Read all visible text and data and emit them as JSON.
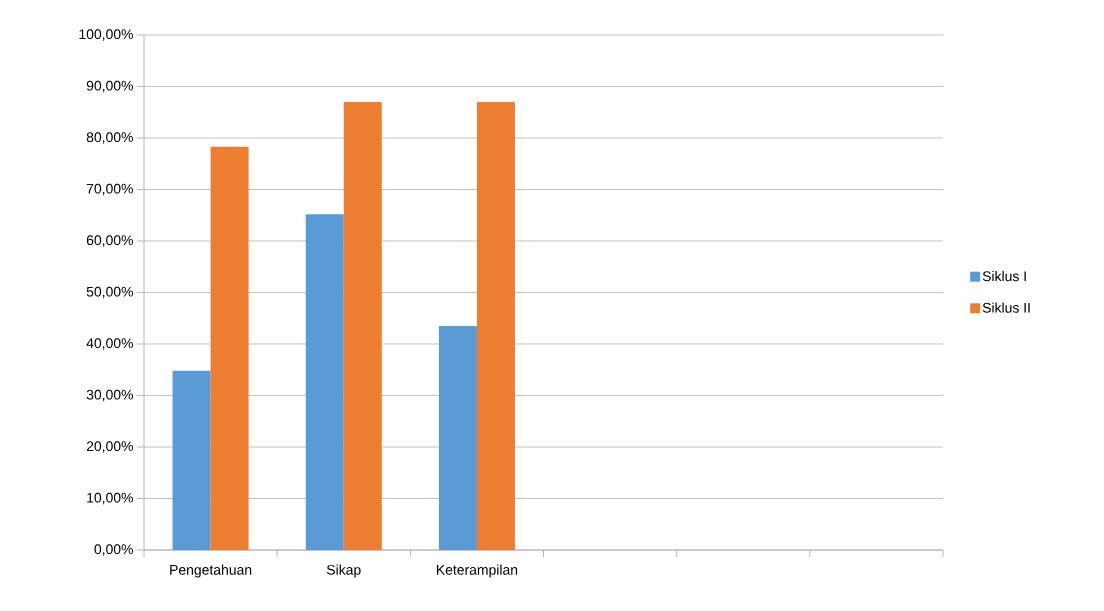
{
  "chart_data": {
    "type": "bar",
    "categories": [
      "Pengetahuan",
      "Sikap",
      "Keterampilan",
      null,
      null,
      null
    ],
    "series": [
      {
        "name": "Siklus I",
        "color": "#5b9bd5",
        "values": [
          34.8,
          65.2,
          43.5,
          null,
          null,
          null
        ]
      },
      {
        "name": "Siklus II",
        "color": "#ed7d31",
        "values": [
          78.3,
          87.0,
          87.0,
          null,
          null,
          null
        ]
      }
    ],
    "ylim": [
      0,
      100
    ],
    "yticks": [
      {
        "value": 0,
        "label": "0,00%"
      },
      {
        "value": 10,
        "label": "10,00%"
      },
      {
        "value": 20,
        "label": "20,00%"
      },
      {
        "value": 30,
        "label": "30,00%"
      },
      {
        "value": 40,
        "label": "40,00%"
      },
      {
        "value": 50,
        "label": "50,00%"
      },
      {
        "value": 60,
        "label": "60,00%"
      },
      {
        "value": 70,
        "label": "70,00%"
      },
      {
        "value": 80,
        "label": "80,00%"
      },
      {
        "value": 90,
        "label": "90,00%"
      },
      {
        "value": 100,
        "label": "100,00%"
      }
    ],
    "grid": "y",
    "legend": "right"
  }
}
